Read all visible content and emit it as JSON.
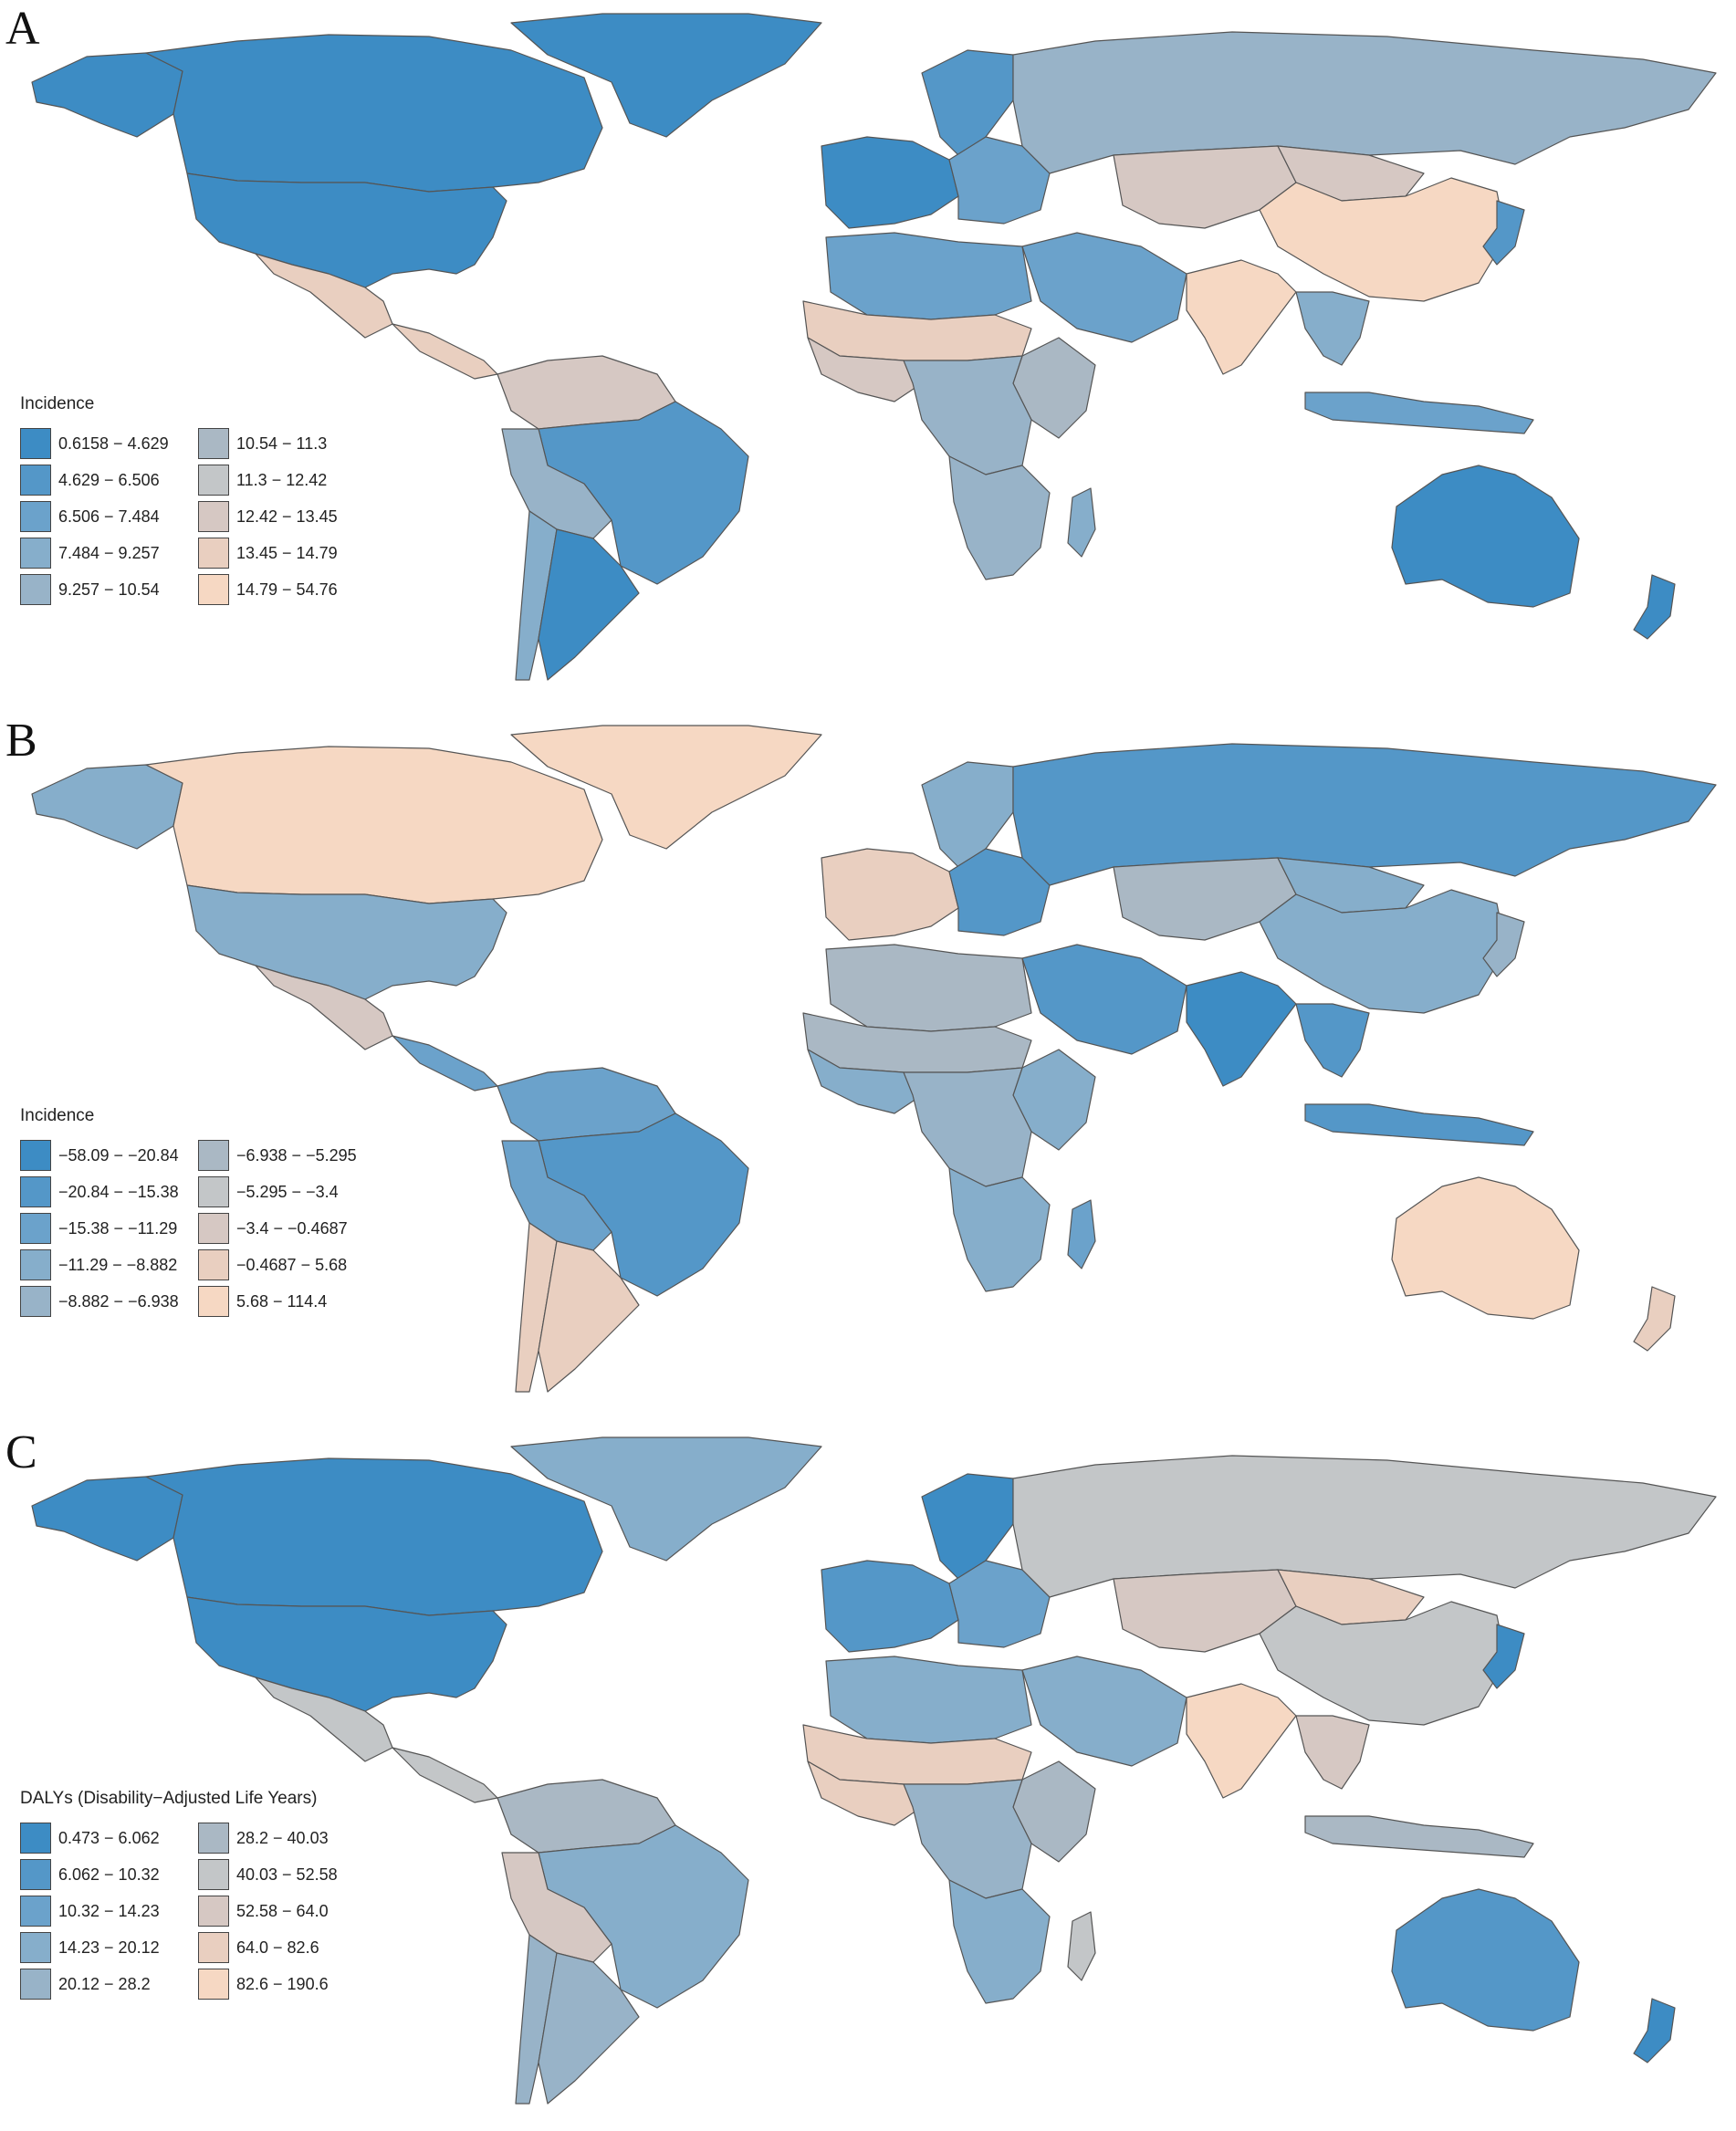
{
  "colors": {
    "ramp": [
      "#3d8cc4",
      "#5497c8",
      "#6ba2cb",
      "#86aecb",
      "#98b3c8",
      "#aab8c4",
      "#c3c6c8",
      "#d6c8c3",
      "#e9cfc0",
      "#f6d8c3"
    ],
    "border": "#555555",
    "background": "#ffffff"
  },
  "panels": [
    {
      "label": "A",
      "legend": {
        "title": "Incidence",
        "items": [
          "0.6158 − 4.629",
          "4.629 − 6.506",
          "6.506 − 7.484",
          "7.484 − 9.257",
          "9.257 − 10.54",
          "10.54 − 11.3",
          "11.3 − 12.42",
          "12.42 − 13.45",
          "13.45 − 14.79",
          "14.79 − 54.76"
        ]
      },
      "region_classes": {
        "alaska": 0,
        "canada": 0,
        "usa": 0,
        "mexico": 8,
        "central_america": 8,
        "greenland": 0,
        "colombia_venezuela": 7,
        "brazil": 1,
        "peru_bolivia": 4,
        "argentina": 0,
        "chile": 3,
        "western_europe": 0,
        "eastern_europe": 2,
        "scandinavia": 1,
        "russia": 4,
        "north_africa": 2,
        "sahel": 8,
        "west_africa": 7,
        "central_africa": 4,
        "east_africa": 5,
        "southern_africa": 4,
        "middle_east": 2,
        "central_asia": 7,
        "india": 9,
        "china": 9,
        "mongolia": 7,
        "japan": 1,
        "southeast_asia": 3,
        "indonesia": 2,
        "australia": 0,
        "new_zealand": 0,
        "madagascar": 3
      }
    },
    {
      "label": "B",
      "legend": {
        "title": "Incidence",
        "items": [
          "−58.09 − −20.84",
          "−20.84 − −15.38",
          "−15.38 − −11.29",
          "−11.29 − −8.882",
          "−8.882 − −6.938",
          "−6.938 − −5.295",
          "−5.295 − −3.4",
          "−3.4 − −0.4687",
          "−0.4687 − 5.68",
          "5.68 − 114.4"
        ]
      },
      "region_classes": {
        "alaska": 3,
        "canada": 9,
        "usa": 3,
        "mexico": 7,
        "central_america": 2,
        "greenland": 9,
        "colombia_venezuela": 2,
        "brazil": 1,
        "peru_bolivia": 2,
        "argentina": 8,
        "chile": 8,
        "western_europe": 8,
        "eastern_europe": 1,
        "scandinavia": 3,
        "russia": 1,
        "north_africa": 5,
        "sahel": 5,
        "west_africa": 3,
        "central_africa": 4,
        "east_africa": 3,
        "southern_africa": 3,
        "middle_east": 1,
        "central_asia": 5,
        "india": 0,
        "china": 3,
        "mongolia": 3,
        "japan": 4,
        "southeast_asia": 1,
        "indonesia": 1,
        "australia": 9,
        "new_zealand": 8,
        "madagascar": 2
      }
    },
    {
      "label": "C",
      "legend": {
        "title": "DALYs (Disability−Adjusted Life Years)",
        "items": [
          "0.473 − 6.062",
          "6.062 − 10.32",
          "10.32 − 14.23",
          "14.23 − 20.12",
          "20.12 − 28.2",
          "28.2 − 40.03",
          "40.03 − 52.58",
          "52.58 − 64.0",
          "64.0 − 82.6",
          "82.6 − 190.6"
        ]
      },
      "region_classes": {
        "alaska": 0,
        "canada": 0,
        "usa": 0,
        "mexico": 6,
        "central_america": 6,
        "greenland": 3,
        "colombia_venezuela": 5,
        "brazil": 3,
        "peru_bolivia": 7,
        "argentina": 4,
        "chile": 4,
        "western_europe": 1,
        "eastern_europe": 2,
        "scandinavia": 0,
        "russia": 6,
        "north_africa": 3,
        "sahel": 8,
        "west_africa": 8,
        "central_africa": 4,
        "east_africa": 5,
        "southern_africa": 3,
        "middle_east": 3,
        "central_asia": 7,
        "india": 9,
        "china": 6,
        "mongolia": 8,
        "japan": 0,
        "southeast_asia": 7,
        "indonesia": 5,
        "australia": 1,
        "new_zealand": 0,
        "madagascar": 6
      }
    }
  ]
}
